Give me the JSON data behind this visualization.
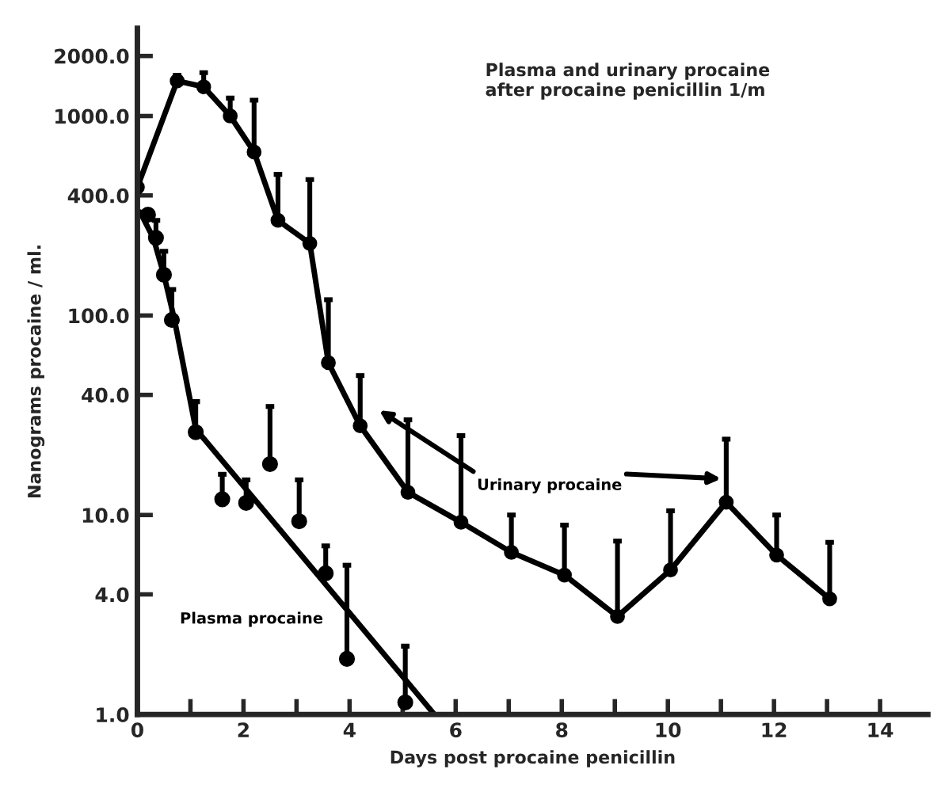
{
  "chart_data": {
    "type": "line",
    "title": "Plasma and urinary procaine\nafter procaine penicillin 1/m",
    "xlabel": "Days post procaine penicillin",
    "ylabel": "Nanograms procaine / ml.",
    "log": true,
    "xlim": [
      0,
      14.9
    ],
    "ylim": [
      1,
      2750
    ],
    "xticks": [
      0,
      {
        "value": 1,
        "label": null
      },
      2,
      {
        "value": 3,
        "label": null
      },
      4,
      {
        "value": 5,
        "label": null
      },
      6,
      {
        "value": 7,
        "label": null
      },
      8,
      {
        "value": 9,
        "label": null
      },
      10,
      {
        "value": 11,
        "label": null
      },
      12,
      {
        "value": 13,
        "label": null
      },
      14
    ],
    "yticks": [
      {
        "value": 1,
        "label": "1.0"
      },
      {
        "value": 4,
        "label": "4.0"
      },
      {
        "value": 10,
        "label": "10.0"
      },
      {
        "value": 40,
        "label": "40.0"
      },
      {
        "value": 100,
        "label": "100.0"
      },
      {
        "value": 400,
        "label": "400.0"
      },
      {
        "value": 1000,
        "label": "1000.0"
      },
      {
        "value": 2000,
        "label": "2000.0"
      }
    ],
    "marker": "circle",
    "grid": false,
    "series": [
      {
        "name": "Urinary procaine",
        "color": "#000000",
        "x": [
          0,
          0.75,
          1.25,
          1.75,
          2.2,
          2.65,
          3.25,
          3.6,
          4.2,
          5.1,
          6.1,
          7.05,
          8.05,
          9.05,
          10.05,
          11.1,
          12.05,
          13.05
        ],
        "values": [
          440,
          1500,
          1400,
          1000,
          660,
          300,
          230,
          58,
          28,
          13,
          9.2,
          6.5,
          5,
          3.1,
          5.3,
          11.6,
          6.3,
          3.8
        ],
        "errors": [
          null,
          [
            1500,
            1600
          ],
          [
            1400,
            1650
          ],
          [
            1000,
            1230
          ],
          [
            660,
            1200
          ],
          [
            300,
            510
          ],
          [
            230,
            480
          ],
          [
            58,
            120
          ],
          [
            28,
            50
          ],
          [
            13,
            30
          ],
          [
            9.2,
            25
          ],
          [
            6.5,
            10
          ],
          [
            5,
            8.9
          ],
          [
            3.1,
            7.4
          ],
          [
            5.3,
            10.5
          ],
          [
            11.6,
            24
          ],
          [
            6.3,
            10
          ],
          [
            3.8,
            7.3
          ]
        ]
      },
      {
        "name": "Plasma procaine",
        "type": "scatter",
        "color": "#000000",
        "x": [
          0.2,
          0.35,
          0.5,
          0.65,
          1.1,
          1.6,
          2.05,
          2.5,
          3.05,
          3.55,
          3.95,
          5.05
        ],
        "values": [
          320,
          245,
          160,
          95,
          26,
          12,
          11.5,
          18,
          9.3,
          5.1,
          1.9,
          1.15
        ],
        "errors": [
          null,
          [
            245,
            300
          ],
          [
            160,
            210
          ],
          [
            95,
            135
          ],
          [
            26,
            37
          ],
          [
            12,
            16
          ],
          [
            11.5,
            15
          ],
          [
            18,
            35
          ],
          [
            9.3,
            15
          ],
          [
            5.1,
            7
          ],
          [
            1.9,
            5.6
          ],
          [
            1.15,
            2.2
          ]
        ]
      },
      {
        "marker": "none",
        "color": "#000000",
        "x": [
          0.05,
          0.3,
          0.5,
          0.7,
          1.1,
          5.6
        ],
        "values": [
          330,
          245,
          160,
          95,
          27,
          1
        ]
      }
    ]
  }
}
